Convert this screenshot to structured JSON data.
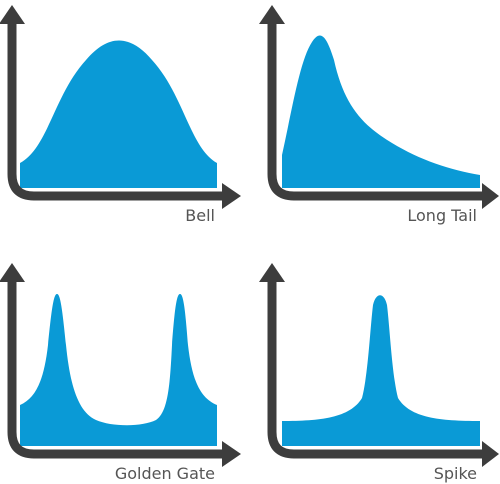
{
  "colors": {
    "fill": "#0a9ad6",
    "axis": "#3d3d3d",
    "label": "#555555",
    "background": "#ffffff"
  },
  "panels": [
    {
      "id": "bell",
      "label": "Bell",
      "shape": "single peak, symmetric"
    },
    {
      "id": "long-tail",
      "label": "Long Tail",
      "shape": "early peak, long right tail"
    },
    {
      "id": "golden-gate",
      "label": "Golden Gate",
      "shape": "two peaks, flat valley"
    },
    {
      "id": "spike",
      "label": "Spike",
      "shape": "single narrow peak, flat baseline"
    }
  ]
}
